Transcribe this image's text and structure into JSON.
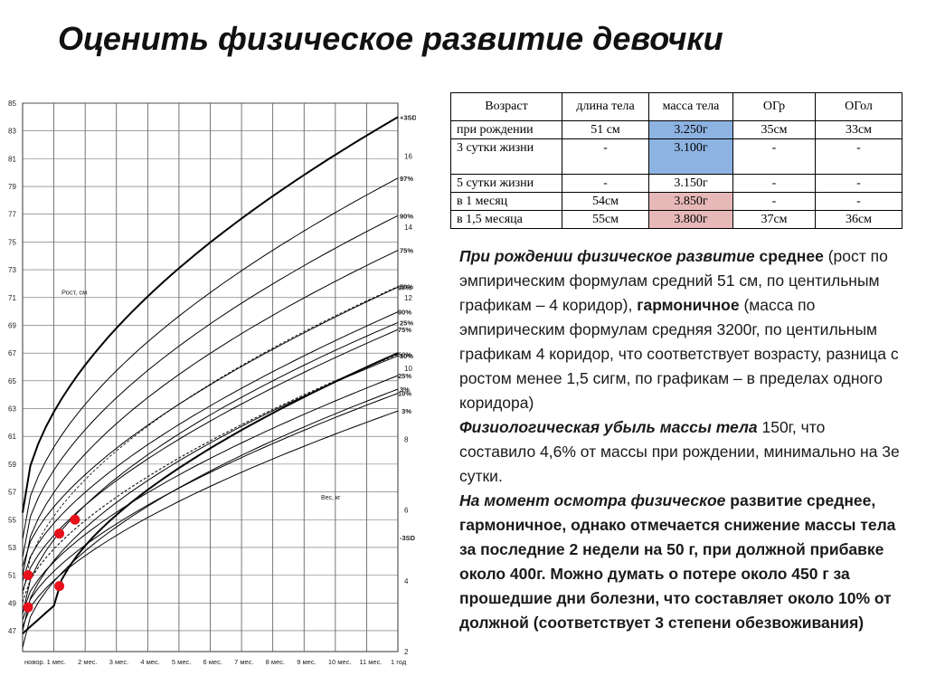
{
  "title": "Оценить физическое развитие девочки",
  "chart": {
    "height_axis_ticks": [
      "47",
      "49",
      "51",
      "53",
      "55",
      "57",
      "59",
      "61",
      "63",
      "65",
      "67",
      "69",
      "71",
      "73",
      "75",
      "77",
      "79",
      "81",
      "83",
      "85"
    ],
    "weight_axis_ticks": [
      "2",
      "4",
      "6",
      "8",
      "10",
      "12",
      "14",
      "16"
    ],
    "age_ticks": [
      "новор.",
      "1 мес.",
      "2 мес.",
      "3 мес.",
      "4 мес.",
      "5 мес.",
      "6 мес.",
      "7 мес.",
      "8 мес.",
      "9 мес.",
      "10 мес.",
      "11 мес.",
      "1 год"
    ],
    "height_label": "Рост, см",
    "weight_label": "Вес, кг",
    "height_curve_labels": [
      "+3SD",
      "97%",
      "90%",
      "75%",
      "50%",
      "25%",
      "10%",
      "3%",
      "-3SD"
    ],
    "weight_curve_labels": [
      "97%",
      "90%",
      "75%",
      "50%",
      "25%",
      "10%",
      "3%"
    ],
    "line_color": "#000000",
    "point_color": "#e8101a",
    "height_points": [
      {
        "age_months": 0.0,
        "value_cm": 51
      },
      {
        "age_months": 1.0,
        "value_cm": 54
      },
      {
        "age_months": 1.5,
        "value_cm": 55
      }
    ],
    "weight_points": [
      {
        "age_months": 0.0,
        "value_kg": 3.25
      },
      {
        "age_months": 1.0,
        "value_kg": 3.85
      }
    ]
  },
  "table": {
    "headers": [
      "Возраст",
      "длина тела",
      "масса тела",
      "ОГр",
      "ОГол"
    ],
    "rows": [
      {
        "age": "при рождении",
        "length": "51 см",
        "mass": "3.250г",
        "chest": "35см",
        "head": "33см",
        "highlight": "blue"
      },
      {
        "age": "3 сутки жизни",
        "length": "-",
        "mass": "3.100г",
        "chest": "-",
        "head": "-",
        "highlight": "blue"
      },
      {
        "age": "5 сутки жизни",
        "length": "-",
        "mass": "3.150г",
        "chest": "-",
        "head": "-",
        "highlight": ""
      },
      {
        "age": "в 1 месяц",
        "length": "54см",
        "mass": "3.850г",
        "chest": "-",
        "head": "-",
        "highlight": "pink"
      },
      {
        "age": "в 1,5 месяца",
        "length": "55см",
        "mass": "3.800г",
        "chest": "37см",
        "head": "36см",
        "highlight": "pink"
      }
    ],
    "highlight_colors": {
      "blue": "#8db3e2",
      "pink": "#e6b9b8"
    }
  },
  "notes": {
    "p1_bi": "При рождении физическое развитие",
    "p1_b": " среднее",
    "p1_t1": " (рост по эмпирическим формулам средний 51 см, по центильным графикам – 4 коридор), ",
    "p1_b2": "гармоничное",
    "p1_t2": " (масса по эмпирическим формулам средняя 3200г, по центильным графикам 4 коридор, что соответствует возрасту, разница с ростом менее 1,5 сигм, по графикам – в пределах одного коридора)",
    "p2_bi": "Физиологическая убыль массы тела",
    "p2_t": " 150г, что составило 4,6% от массы при рождении, минимально на 3е сутки.",
    "p3_bi": "На момент осмотра физическое",
    "p3_b": " развитие среднее, гармоничное, однако отмечается снижение массы тела за последние 2 недели на 50 г, при должной прибавке около 400г. Можно думать о потере около 450 г за прошедшие дни болезни, что составляет около 10% от должной (соответствует 3 степени обезвоживания)"
  }
}
